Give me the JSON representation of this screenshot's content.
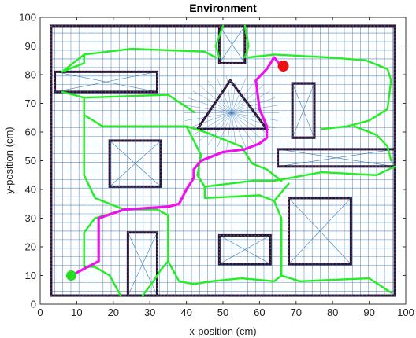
{
  "chart_data": {
    "type": "scatter",
    "title": "Environment",
    "xlabel": "x-position (cm)",
    "ylabel": "y-position (cm)",
    "xlim": [
      0,
      100
    ],
    "ylim": [
      0,
      100
    ],
    "xticks": [
      "0",
      "10",
      "20",
      "30",
      "40",
      "50",
      "60",
      "70",
      "80",
      "90",
      "100"
    ],
    "yticks": [
      "0",
      "10",
      "20",
      "30",
      "40",
      "50",
      "60",
      "70",
      "80",
      "90",
      "100"
    ],
    "grid": false,
    "colors": {
      "obstacle": "#1a1a40",
      "obstacle_dots": "#d04040",
      "roadmap_lines": "#3a78b5",
      "voronoi": "#22ee22",
      "path": "#ee11ee",
      "start": "#22dd22",
      "goal": "#ee1111"
    },
    "boundary": {
      "x0": 3,
      "y0": 3,
      "x1": 97,
      "y1": 97
    },
    "obstacles": [
      {
        "type": "rect",
        "x0": 4,
        "y0": 74,
        "x1": 32,
        "y1": 81
      },
      {
        "type": "rect",
        "x0": 49,
        "y0": 84,
        "x1": 56,
        "y1": 97
      },
      {
        "type": "rect",
        "x0": 69,
        "y0": 58,
        "x1": 75,
        "y1": 77
      },
      {
        "type": "rect",
        "x0": 19,
        "y0": 41,
        "x1": 33,
        "y1": 57
      },
      {
        "type": "rect",
        "x0": 65,
        "y0": 48,
        "x1": 97,
        "y1": 54
      },
      {
        "type": "rect",
        "x0": 24,
        "y0": 3,
        "x1": 32,
        "y1": 25
      },
      {
        "type": "rect",
        "x0": 49,
        "y0": 14,
        "x1": 63,
        "y1": 24
      },
      {
        "type": "rect",
        "x0": 68,
        "y0": 14,
        "x1": 85,
        "y1": 37
      },
      {
        "type": "triangle",
        "points": [
          [
            52,
            78
          ],
          [
            43,
            61
          ],
          [
            62,
            61
          ]
        ]
      }
    ],
    "voronoi_edges": [
      [
        [
          6,
          81
        ],
        [
          12,
          87
        ],
        [
          25,
          89
        ],
        [
          45,
          88
        ],
        [
          48,
          86
        ]
      ],
      [
        [
          57,
          86
        ],
        [
          64,
          87
        ],
        [
          79,
          86
        ],
        [
          89,
          85
        ],
        [
          95,
          82
        ],
        [
          96,
          78
        ]
      ],
      [
        [
          6,
          74
        ],
        [
          12,
          72
        ],
        [
          35,
          73
        ],
        [
          42,
          67
        ]
      ],
      [
        [
          96,
          78
        ],
        [
          95,
          68
        ],
        [
          90,
          64
        ],
        [
          84,
          62
        ],
        [
          77,
          61
        ]
      ],
      [
        [
          96,
          50
        ],
        [
          95,
          55
        ],
        [
          92,
          59
        ],
        [
          86,
          62
        ]
      ],
      [
        [
          12,
          72
        ],
        [
          12,
          66
        ],
        [
          17,
          62
        ],
        [
          35,
          62
        ],
        [
          40,
          62
        ]
      ],
      [
        [
          40,
          62
        ],
        [
          44,
          52
        ],
        [
          43,
          45
        ],
        [
          45,
          41
        ]
      ],
      [
        [
          12,
          66
        ],
        [
          12,
          45
        ],
        [
          15,
          37
        ],
        [
          23,
          33
        ],
        [
          32,
          33
        ],
        [
          35,
          31
        ]
      ],
      [
        [
          35,
          31
        ],
        [
          35,
          15
        ],
        [
          38,
          8
        ],
        [
          42,
          7
        ]
      ],
      [
        [
          45,
          41
        ],
        [
          58,
          43
        ],
        [
          64,
          43
        ],
        [
          77,
          46
        ],
        [
          92,
          45
        ],
        [
          97,
          48
        ]
      ],
      [
        [
          45,
          41
        ],
        [
          45,
          37
        ],
        [
          60,
          38
        ],
        [
          64,
          36
        ]
      ],
      [
        [
          64,
          36
        ],
        [
          68,
          42
        ]
      ],
      [
        [
          64,
          36
        ],
        [
          66,
          30
        ],
        [
          66,
          22
        ],
        [
          66,
          10
        ],
        [
          71,
          8
        ],
        [
          90,
          9
        ],
        [
          96,
          4
        ]
      ],
      [
        [
          42,
          7
        ],
        [
          47,
          8
        ],
        [
          55,
          9
        ],
        [
          64,
          8
        ],
        [
          66,
          10
        ]
      ],
      [
        [
          35,
          15
        ],
        [
          33,
          12
        ],
        [
          31,
          8
        ],
        [
          28,
          3
        ]
      ],
      [
        [
          22,
          3
        ],
        [
          19,
          10
        ],
        [
          15,
          13
        ],
        [
          12,
          13
        ]
      ],
      [
        [
          12,
          13
        ],
        [
          12,
          25
        ],
        [
          15,
          30
        ],
        [
          23,
          33
        ]
      ],
      [
        [
          40,
          62
        ],
        [
          45,
          60
        ],
        [
          55,
          55
        ],
        [
          58,
          49
        ],
        [
          62,
          47
        ],
        [
          66,
          43
        ]
      ],
      [
        [
          12,
          87
        ],
        [
          12,
          84
        ],
        [
          6,
          81
        ]
      ],
      [
        [
          49,
          86
        ],
        [
          48,
          90
        ],
        [
          50,
          97
        ]
      ],
      [
        [
          56,
          86
        ],
        [
          57,
          90
        ],
        [
          56,
          97
        ]
      ]
    ],
    "path": [
      [
        8.5,
        10
      ],
      [
        16,
        15
      ],
      [
        16,
        30
      ],
      [
        23,
        33
      ],
      [
        35,
        34
      ],
      [
        38,
        35
      ],
      [
        40,
        40
      ],
      [
        42,
        44
      ],
      [
        42,
        47
      ],
      [
        44,
        50
      ],
      [
        50,
        53
      ],
      [
        56,
        54
      ],
      [
        60,
        56
      ],
      [
        62,
        58
      ],
      [
        62,
        62
      ],
      [
        60,
        68
      ],
      [
        59,
        78
      ],
      [
        62,
        82
      ],
      [
        64,
        86
      ],
      [
        66,
        83
      ]
    ],
    "start": {
      "x": 8.5,
      "y": 10
    },
    "goal": {
      "x": 66.5,
      "y": 83
    }
  }
}
